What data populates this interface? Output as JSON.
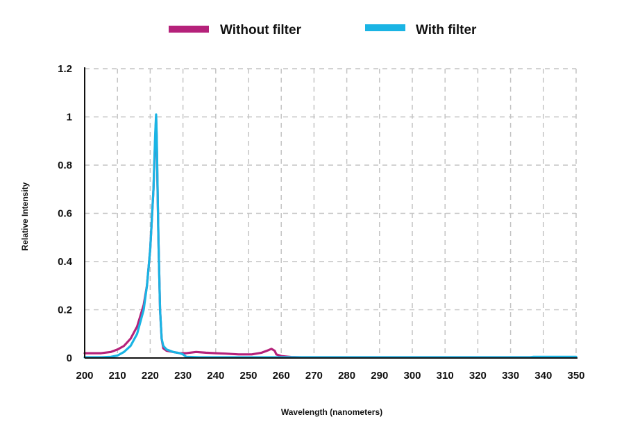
{
  "chart_data": {
    "type": "line",
    "xlabel": "Wavelength (nanometers)",
    "ylabel": "Relative Intensity",
    "xlim": [
      200,
      350
    ],
    "ylim": [
      0,
      1.2
    ],
    "xticks": [
      "200",
      "210",
      "220",
      "230",
      "240",
      "250",
      "260",
      "270",
      "280",
      "290",
      "300",
      "310",
      "320",
      "330",
      "340",
      "350"
    ],
    "yticks": [
      "0",
      "0.2",
      "0.4",
      "0.6",
      "0.8",
      "1",
      "1.2"
    ],
    "grid": true,
    "legend_position": "top-center",
    "series": [
      {
        "name": "Without filter",
        "color": "#b5217a",
        "points": [
          [
            200,
            0.02
          ],
          [
            205,
            0.02
          ],
          [
            208,
            0.025
          ],
          [
            210,
            0.035
          ],
          [
            212,
            0.05
          ],
          [
            214,
            0.08
          ],
          [
            216,
            0.13
          ],
          [
            218,
            0.22
          ],
          [
            219,
            0.3
          ],
          [
            220,
            0.45
          ],
          [
            221,
            0.7
          ],
          [
            221.5,
            0.9
          ],
          [
            221.8,
            1.0
          ],
          [
            222,
            0.9
          ],
          [
            222.5,
            0.5
          ],
          [
            223,
            0.2
          ],
          [
            223.5,
            0.08
          ],
          [
            224,
            0.04
          ],
          [
            225,
            0.03
          ],
          [
            227,
            0.025
          ],
          [
            229,
            0.02
          ],
          [
            231,
            0.02
          ],
          [
            234,
            0.025
          ],
          [
            237,
            0.022
          ],
          [
            240,
            0.02
          ],
          [
            243,
            0.018
          ],
          [
            247,
            0.015
          ],
          [
            251,
            0.015
          ],
          [
            254,
            0.022
          ],
          [
            256,
            0.032
          ],
          [
            257,
            0.038
          ],
          [
            258,
            0.03
          ],
          [
            258.5,
            0.015
          ],
          [
            260,
            0.008
          ],
          [
            263,
            0.004
          ],
          [
            266,
            0.003
          ],
          [
            280,
            0.003
          ],
          [
            300,
            0.003
          ],
          [
            320,
            0.003
          ],
          [
            340,
            0.003
          ],
          [
            350,
            0.003
          ]
        ]
      },
      {
        "name": "With filter",
        "color": "#1ab4e4",
        "points": [
          [
            200,
            0.003
          ],
          [
            205,
            0.003
          ],
          [
            208,
            0.005
          ],
          [
            210,
            0.01
          ],
          [
            212,
            0.025
          ],
          [
            214,
            0.05
          ],
          [
            216,
            0.1
          ],
          [
            218,
            0.2
          ],
          [
            219,
            0.3
          ],
          [
            220,
            0.45
          ],
          [
            221,
            0.7
          ],
          [
            221.5,
            0.92
          ],
          [
            221.8,
            1.01
          ],
          [
            222,
            0.92
          ],
          [
            222.5,
            0.5
          ],
          [
            223,
            0.2
          ],
          [
            223.5,
            0.08
          ],
          [
            224,
            0.05
          ],
          [
            225,
            0.035
          ],
          [
            227,
            0.025
          ],
          [
            229,
            0.02
          ],
          [
            230,
            0.015
          ],
          [
            231,
            0.005
          ],
          [
            235,
            0.003
          ],
          [
            260,
            0.003
          ],
          [
            300,
            0.003
          ],
          [
            336,
            0.003
          ],
          [
            337,
            0.005
          ],
          [
            350,
            0.005
          ]
        ]
      }
    ]
  }
}
